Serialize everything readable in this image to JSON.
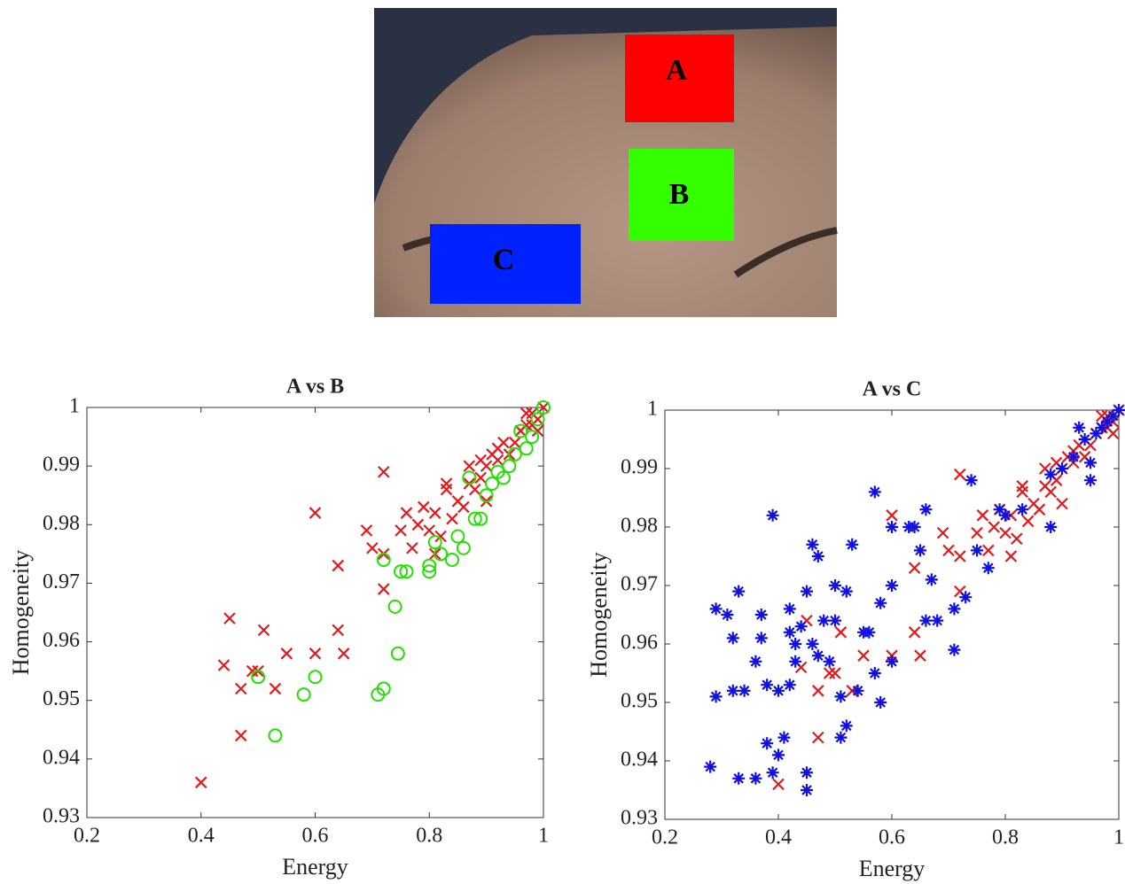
{
  "photo": {
    "regions": [
      {
        "label": "A",
        "color": "#ff0000"
      },
      {
        "label": "B",
        "color": "#33ff00"
      },
      {
        "label": "C",
        "color": "#0022ff"
      }
    ]
  },
  "chart_data": [
    {
      "type": "scatter",
      "title": "A vs B",
      "x_label": "Energy",
      "y_label": "Homogeneity",
      "xlim": [
        0.2,
        1
      ],
      "ylim": [
        0.93,
        1
      ],
      "xticks": [
        0.2,
        0.4,
        0.6,
        0.8,
        1
      ],
      "yticks": [
        0.93,
        0.94,
        0.95,
        0.96,
        0.97,
        0.98,
        0.99,
        1
      ],
      "series": [
        {
          "color": "#e31a1c",
          "marker": "x",
          "x": [
            0.4,
            0.47,
            0.44,
            0.45,
            0.47,
            0.49,
            0.51,
            0.5,
            0.53,
            0.55,
            0.6,
            0.6,
            0.64,
            0.64,
            0.65,
            0.69,
            0.7,
            0.72,
            0.72,
            0.72,
            0.75,
            0.76,
            0.77,
            0.78,
            0.79,
            0.8,
            0.81,
            0.81,
            0.82,
            0.83,
            0.83,
            0.84,
            0.85,
            0.86,
            0.87,
            0.87,
            0.88,
            0.89,
            0.89,
            0.9,
            0.9,
            0.91,
            0.92,
            0.92,
            0.93,
            0.94,
            0.95,
            0.96,
            0.97,
            0.97,
            0.98,
            0.98,
            0.99,
            0.99,
            1.0
          ],
          "values": [
            0.936,
            0.944,
            0.956,
            0.964,
            0.952,
            0.955,
            0.962,
            0.955,
            0.952,
            0.958,
            0.958,
            0.982,
            0.973,
            0.962,
            0.958,
            0.979,
            0.976,
            0.969,
            0.989,
            0.975,
            0.979,
            0.982,
            0.976,
            0.98,
            0.983,
            0.979,
            0.975,
            0.982,
            0.978,
            0.986,
            0.987,
            0.981,
            0.984,
            0.983,
            0.99,
            0.987,
            0.986,
            0.991,
            0.988,
            0.984,
            0.99,
            0.992,
            0.991,
            0.993,
            0.994,
            0.992,
            0.994,
            0.996,
            0.997,
            0.999,
            0.997,
            0.999,
            0.998,
            0.996,
            1.0
          ]
        },
        {
          "color": "#22e000",
          "marker": "o",
          "x": [
            0.5,
            0.53,
            0.58,
            0.6,
            0.71,
            0.72,
            0.72,
            0.74,
            0.745,
            0.75,
            0.76,
            0.8,
            0.8,
            0.81,
            0.82,
            0.84,
            0.85,
            0.86,
            0.87,
            0.88,
            0.89,
            0.9,
            0.91,
            0.92,
            0.93,
            0.94,
            0.95,
            0.96,
            0.97,
            0.98,
            0.99,
            1.0
          ],
          "values": [
            0.954,
            0.944,
            0.951,
            0.954,
            0.951,
            0.952,
            0.974,
            0.966,
            0.958,
            0.972,
            0.972,
            0.972,
            0.973,
            0.977,
            0.975,
            0.974,
            0.978,
            0.976,
            0.988,
            0.981,
            0.981,
            0.985,
            0.987,
            0.989,
            0.988,
            0.99,
            0.992,
            0.996,
            0.993,
            0.995,
            0.998,
            1.0
          ]
        }
      ]
    },
    {
      "type": "scatter",
      "title": "A vs C",
      "x_label": "Energy",
      "y_label": "Homogeneity",
      "xlim": [
        0.2,
        1
      ],
      "ylim": [
        0.93,
        1
      ],
      "xticks": [
        0.2,
        0.4,
        0.6,
        0.8,
        1
      ],
      "yticks": [
        0.93,
        0.94,
        0.95,
        0.96,
        0.97,
        0.98,
        0.99,
        1
      ],
      "series": [
        {
          "color": "#e31a1c",
          "marker": "x",
          "x": [
            0.4,
            0.47,
            0.44,
            0.45,
            0.47,
            0.49,
            0.51,
            0.5,
            0.53,
            0.55,
            0.6,
            0.6,
            0.64,
            0.64,
            0.65,
            0.69,
            0.7,
            0.72,
            0.72,
            0.72,
            0.75,
            0.76,
            0.77,
            0.78,
            0.79,
            0.8,
            0.81,
            0.81,
            0.82,
            0.83,
            0.83,
            0.84,
            0.85,
            0.86,
            0.87,
            0.87,
            0.88,
            0.89,
            0.89,
            0.9,
            0.9,
            0.91,
            0.92,
            0.92,
            0.93,
            0.94,
            0.95,
            0.96,
            0.97,
            0.97,
            0.98,
            0.98,
            0.99,
            0.99,
            1.0
          ],
          "values": [
            0.936,
            0.944,
            0.956,
            0.964,
            0.952,
            0.955,
            0.962,
            0.955,
            0.952,
            0.958,
            0.958,
            0.982,
            0.973,
            0.962,
            0.958,
            0.979,
            0.976,
            0.969,
            0.989,
            0.975,
            0.979,
            0.982,
            0.976,
            0.98,
            0.983,
            0.979,
            0.975,
            0.982,
            0.978,
            0.986,
            0.987,
            0.981,
            0.984,
            0.983,
            0.99,
            0.987,
            0.986,
            0.991,
            0.988,
            0.984,
            0.99,
            0.992,
            0.991,
            0.993,
            0.994,
            0.992,
            0.994,
            0.996,
            0.997,
            0.999,
            0.997,
            0.999,
            0.998,
            0.996,
            1.0
          ]
        },
        {
          "color": "#1010e0",
          "marker": "*",
          "x": [
            0.28,
            0.29,
            0.29,
            0.31,
            0.32,
            0.32,
            0.33,
            0.33,
            0.34,
            0.36,
            0.36,
            0.37,
            0.37,
            0.38,
            0.38,
            0.39,
            0.39,
            0.4,
            0.4,
            0.41,
            0.42,
            0.42,
            0.42,
            0.43,
            0.43,
            0.44,
            0.45,
            0.45,
            0.45,
            0.46,
            0.46,
            0.47,
            0.47,
            0.48,
            0.49,
            0.5,
            0.5,
            0.51,
            0.51,
            0.52,
            0.52,
            0.53,
            0.54,
            0.55,
            0.56,
            0.57,
            0.57,
            0.58,
            0.58,
            0.6,
            0.6,
            0.6,
            0.63,
            0.64,
            0.65,
            0.66,
            0.66,
            0.67,
            0.68,
            0.71,
            0.71,
            0.73,
            0.74,
            0.75,
            0.77,
            0.79,
            0.8,
            0.83,
            0.88,
            0.88,
            0.9,
            0.92,
            0.93,
            0.94,
            0.95,
            0.95,
            0.96,
            0.97,
            0.98,
            0.99,
            1.0
          ],
          "values": [
            0.939,
            0.951,
            0.966,
            0.965,
            0.961,
            0.952,
            0.969,
            0.937,
            0.952,
            0.937,
            0.957,
            0.965,
            0.961,
            0.943,
            0.953,
            0.982,
            0.938,
            0.941,
            0.952,
            0.944,
            0.962,
            0.966,
            0.953,
            0.957,
            0.96,
            0.963,
            0.969,
            0.938,
            0.935,
            0.977,
            0.96,
            0.975,
            0.958,
            0.964,
            0.957,
            0.97,
            0.964,
            0.951,
            0.944,
            0.946,
            0.969,
            0.977,
            0.952,
            0.962,
            0.962,
            0.986,
            0.955,
            0.95,
            0.967,
            0.98,
            0.97,
            0.957,
            0.98,
            0.98,
            0.976,
            0.983,
            0.964,
            0.971,
            0.964,
            0.959,
            0.966,
            0.968,
            0.988,
            0.976,
            0.973,
            0.983,
            0.982,
            0.983,
            0.98,
            0.989,
            0.99,
            0.992,
            0.997,
            0.995,
            0.988,
            0.991,
            0.996,
            0.997,
            0.998,
            0.999,
            1.0
          ]
        }
      ]
    }
  ]
}
